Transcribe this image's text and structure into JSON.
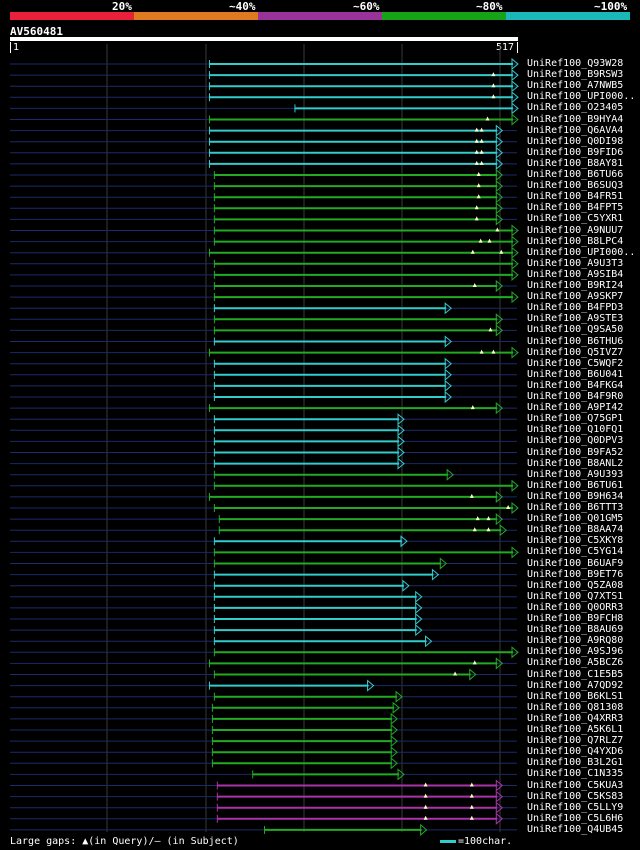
{
  "legend": {
    "colors": [
      "#e8203a",
      "#e07a20",
      "#993399",
      "#17a317",
      "#1ab8b8"
    ],
    "labels": [
      "20%",
      "~40%",
      "~60%",
      "~80%",
      "~100%"
    ]
  },
  "query": {
    "name": "AV560481",
    "start": "1",
    "end": "517"
  },
  "colors": {
    "cyan": "#33cccc",
    "green": "#22aa22",
    "purple": "#aa33aa",
    "axis": "#3a3a3a",
    "track": "#1a2a6a"
  },
  "hits": [
    {
      "name": "UniRef100_Q93W28",
      "start": 204,
      "end": 517,
      "color": "cyan",
      "gaps": []
    },
    {
      "name": "UniRef100_B9RSW3",
      "start": 204,
      "end": 517,
      "color": "cyan",
      "gaps": [
        493
      ]
    },
    {
      "name": "UniRef100_A7NWB5",
      "start": 204,
      "end": 517,
      "color": "cyan",
      "gaps": [
        493
      ]
    },
    {
      "name": "UniRef100_UPI000..",
      "start": 204,
      "end": 517,
      "color": "cyan",
      "gaps": [
        493
      ]
    },
    {
      "name": "UniRef100_O23405",
      "start": 291,
      "end": 517,
      "color": "cyan",
      "gaps": []
    },
    {
      "name": "UniRef100_B9HYA4",
      "start": 204,
      "end": 517,
      "color": "green",
      "gaps": [
        487
      ]
    },
    {
      "name": "UniRef100_Q6AVA4",
      "start": 204,
      "end": 501,
      "color": "cyan",
      "gaps": [
        476,
        481
      ]
    },
    {
      "name": "UniRef100_Q0DI98",
      "start": 204,
      "end": 501,
      "color": "cyan",
      "gaps": [
        476,
        481
      ]
    },
    {
      "name": "UniRef100_B9FID6",
      "start": 204,
      "end": 501,
      "color": "cyan",
      "gaps": [
        476,
        481
      ]
    },
    {
      "name": "UniRef100_B8AY81",
      "start": 204,
      "end": 501,
      "color": "cyan",
      "gaps": [
        476,
        481
      ]
    },
    {
      "name": "UniRef100_B6TU66",
      "start": 209,
      "end": 501,
      "color": "green",
      "gaps": [
        478
      ]
    },
    {
      "name": "UniRef100_B6SUQ3",
      "start": 209,
      "end": 501,
      "color": "green",
      "gaps": [
        478
      ]
    },
    {
      "name": "UniRef100_B4FR51",
      "start": 209,
      "end": 501,
      "color": "green",
      "gaps": [
        478
      ]
    },
    {
      "name": "UniRef100_B4FPT5",
      "start": 209,
      "end": 501,
      "color": "green",
      "gaps": [
        476
      ]
    },
    {
      "name": "UniRef100_C5YXR1",
      "start": 209,
      "end": 501,
      "color": "green",
      "gaps": [
        476
      ]
    },
    {
      "name": "UniRef100_A9NUU7",
      "start": 209,
      "end": 517,
      "color": "green",
      "gaps": [
        497
      ]
    },
    {
      "name": "UniRef100_B8LPC4",
      "start": 209,
      "end": 517,
      "color": "green",
      "gaps": [
        480,
        489
      ]
    },
    {
      "name": "UniRef100_UPI000..",
      "start": 204,
      "end": 517,
      "color": "green",
      "gaps": [
        472,
        501
      ]
    },
    {
      "name": "UniRef100_A9U3T3",
      "start": 209,
      "end": 517,
      "color": "green",
      "gaps": []
    },
    {
      "name": "UniRef100_A9SIB4",
      "start": 209,
      "end": 517,
      "color": "green",
      "gaps": []
    },
    {
      "name": "UniRef100_B9RI24",
      "start": 209,
      "end": 501,
      "color": "green",
      "gaps": [
        474
      ]
    },
    {
      "name": "UniRef100_A9SKP7",
      "start": 209,
      "end": 517,
      "color": "green",
      "gaps": []
    },
    {
      "name": "UniRef100_B4FPD3",
      "start": 209,
      "end": 449,
      "color": "cyan",
      "gaps": []
    },
    {
      "name": "UniRef100_A9STE3",
      "start": 209,
      "end": 501,
      "color": "green",
      "gaps": []
    },
    {
      "name": "UniRef100_Q9SA50",
      "start": 209,
      "end": 501,
      "color": "green",
      "gaps": [
        490
      ]
    },
    {
      "name": "UniRef100_B6THU6",
      "start": 209,
      "end": 449,
      "color": "cyan",
      "gaps": []
    },
    {
      "name": "UniRef100_Q5IVZ7",
      "start": 204,
      "end": 517,
      "color": "green",
      "gaps": [
        481,
        493
      ]
    },
    {
      "name": "UniRef100_C5WQF2",
      "start": 209,
      "end": 449,
      "color": "cyan",
      "gaps": []
    },
    {
      "name": "UniRef100_B6U041",
      "start": 209,
      "end": 449,
      "color": "cyan",
      "gaps": []
    },
    {
      "name": "UniRef100_B4FKG4",
      "start": 209,
      "end": 449,
      "color": "cyan",
      "gaps": []
    },
    {
      "name": "UniRef100_B4F9R0",
      "start": 209,
      "end": 449,
      "color": "cyan",
      "gaps": []
    },
    {
      "name": "UniRef100_A9PI42",
      "start": 204,
      "end": 501,
      "color": "green",
      "gaps": [
        472
      ]
    },
    {
      "name": "UniRef100_Q75GP1",
      "start": 209,
      "end": 401,
      "color": "cyan",
      "gaps": []
    },
    {
      "name": "UniRef100_Q10FQ1",
      "start": 209,
      "end": 401,
      "color": "cyan",
      "gaps": []
    },
    {
      "name": "UniRef100_Q0DPV3",
      "start": 209,
      "end": 401,
      "color": "cyan",
      "gaps": []
    },
    {
      "name": "UniRef100_B9FA52",
      "start": 209,
      "end": 401,
      "color": "cyan",
      "gaps": []
    },
    {
      "name": "UniRef100_B8ANL2",
      "start": 209,
      "end": 401,
      "color": "cyan",
      "gaps": []
    },
    {
      "name": "UniRef100_A9U393",
      "start": 209,
      "end": 451,
      "color": "green",
      "gaps": []
    },
    {
      "name": "UniRef100_B6TU61",
      "start": 209,
      "end": 517,
      "color": "green",
      "gaps": []
    },
    {
      "name": "UniRef100_B9H634",
      "start": 204,
      "end": 501,
      "color": "green",
      "gaps": [
        471
      ]
    },
    {
      "name": "UniRef100_B6TTT3",
      "start": 209,
      "end": 517,
      "color": "green",
      "gaps": [
        508
      ]
    },
    {
      "name": "UniRef100_Q01GM5",
      "start": 214,
      "end": 501,
      "color": "green",
      "gaps": [
        477,
        488
      ]
    },
    {
      "name": "UniRef100_B8AA74",
      "start": 214,
      "end": 505,
      "color": "green",
      "gaps": [
        474,
        488
      ]
    },
    {
      "name": "UniRef100_C5XKY8",
      "start": 209,
      "end": 404,
      "color": "cyan",
      "gaps": []
    },
    {
      "name": "UniRef100_C5YG14",
      "start": 209,
      "end": 517,
      "color": "green",
      "gaps": []
    },
    {
      "name": "UniRef100_B6UAF9",
      "start": 209,
      "end": 444,
      "color": "green",
      "gaps": []
    },
    {
      "name": "UniRef100_B9ET76",
      "start": 209,
      "end": 436,
      "color": "cyan",
      "gaps": []
    },
    {
      "name": "UniRef100_Q5ZA08",
      "start": 209,
      "end": 406,
      "color": "cyan",
      "gaps": []
    },
    {
      "name": "UniRef100_Q7XTS1",
      "start": 209,
      "end": 419,
      "color": "cyan",
      "gaps": []
    },
    {
      "name": "UniRef100_Q0ORR3",
      "start": 209,
      "end": 419,
      "color": "cyan",
      "gaps": []
    },
    {
      "name": "UniRef100_B9FCH8",
      "start": 209,
      "end": 419,
      "color": "cyan",
      "gaps": []
    },
    {
      "name": "UniRef100_B8AU69",
      "start": 209,
      "end": 419,
      "color": "cyan",
      "gaps": []
    },
    {
      "name": "UniRef100_A9RQ80",
      "start": 209,
      "end": 429,
      "color": "cyan",
      "gaps": []
    },
    {
      "name": "UniRef100_A9SJ96",
      "start": 209,
      "end": 517,
      "color": "green",
      "gaps": []
    },
    {
      "name": "UniRef100_A5BCZ6",
      "start": 204,
      "end": 501,
      "color": "green",
      "gaps": [
        474
      ]
    },
    {
      "name": "UniRef100_C1E5B5",
      "start": 209,
      "end": 474,
      "color": "green",
      "gaps": [
        454
      ]
    },
    {
      "name": "UniRef100_A7QD92",
      "start": 204,
      "end": 370,
      "color": "cyan",
      "gaps": []
    },
    {
      "name": "UniRef100_B6KLS1",
      "start": 209,
      "end": 399,
      "color": "green",
      "gaps": []
    },
    {
      "name": "UniRef100_Q81308",
      "start": 207,
      "end": 396,
      "color": "green",
      "gaps": []
    },
    {
      "name": "UniRef100_Q4XRR3",
      "start": 207,
      "end": 394,
      "color": "green",
      "gaps": []
    },
    {
      "name": "UniRef100_A5K6L1",
      "start": 207,
      "end": 394,
      "color": "green",
      "gaps": []
    },
    {
      "name": "UniRef100_Q7RLZ7",
      "start": 207,
      "end": 394,
      "color": "green",
      "gaps": []
    },
    {
      "name": "UniRef100_Q4YXD6",
      "start": 207,
      "end": 394,
      "color": "green",
      "gaps": []
    },
    {
      "name": "UniRef100_B3L2G1",
      "start": 207,
      "end": 394,
      "color": "green",
      "gaps": []
    },
    {
      "name": "UniRef100_C1N335",
      "start": 248,
      "end": 401,
      "color": "green",
      "gaps": []
    },
    {
      "name": "UniRef100_C5KUA3",
      "start": 212,
      "end": 501,
      "color": "purple",
      "gaps": [
        424,
        471
      ]
    },
    {
      "name": "UniRef100_C5KS83",
      "start": 212,
      "end": 501,
      "color": "purple",
      "gaps": [
        424,
        471
      ]
    },
    {
      "name": "UniRef100_C5LLY9",
      "start": 212,
      "end": 501,
      "color": "purple",
      "gaps": [
        424,
        471
      ]
    },
    {
      "name": "UniRef100_C5L6H6",
      "start": 212,
      "end": 501,
      "color": "purple",
      "gaps": [
        424,
        471
      ]
    },
    {
      "name": "UniRef100_Q4UB45",
      "start": 260,
      "end": 424,
      "color": "green",
      "gaps": []
    }
  ],
  "footer": {
    "gaps_text": "Large gaps: ▲(in Query)/— (in Subject)",
    "scale_text": "=100char."
  }
}
